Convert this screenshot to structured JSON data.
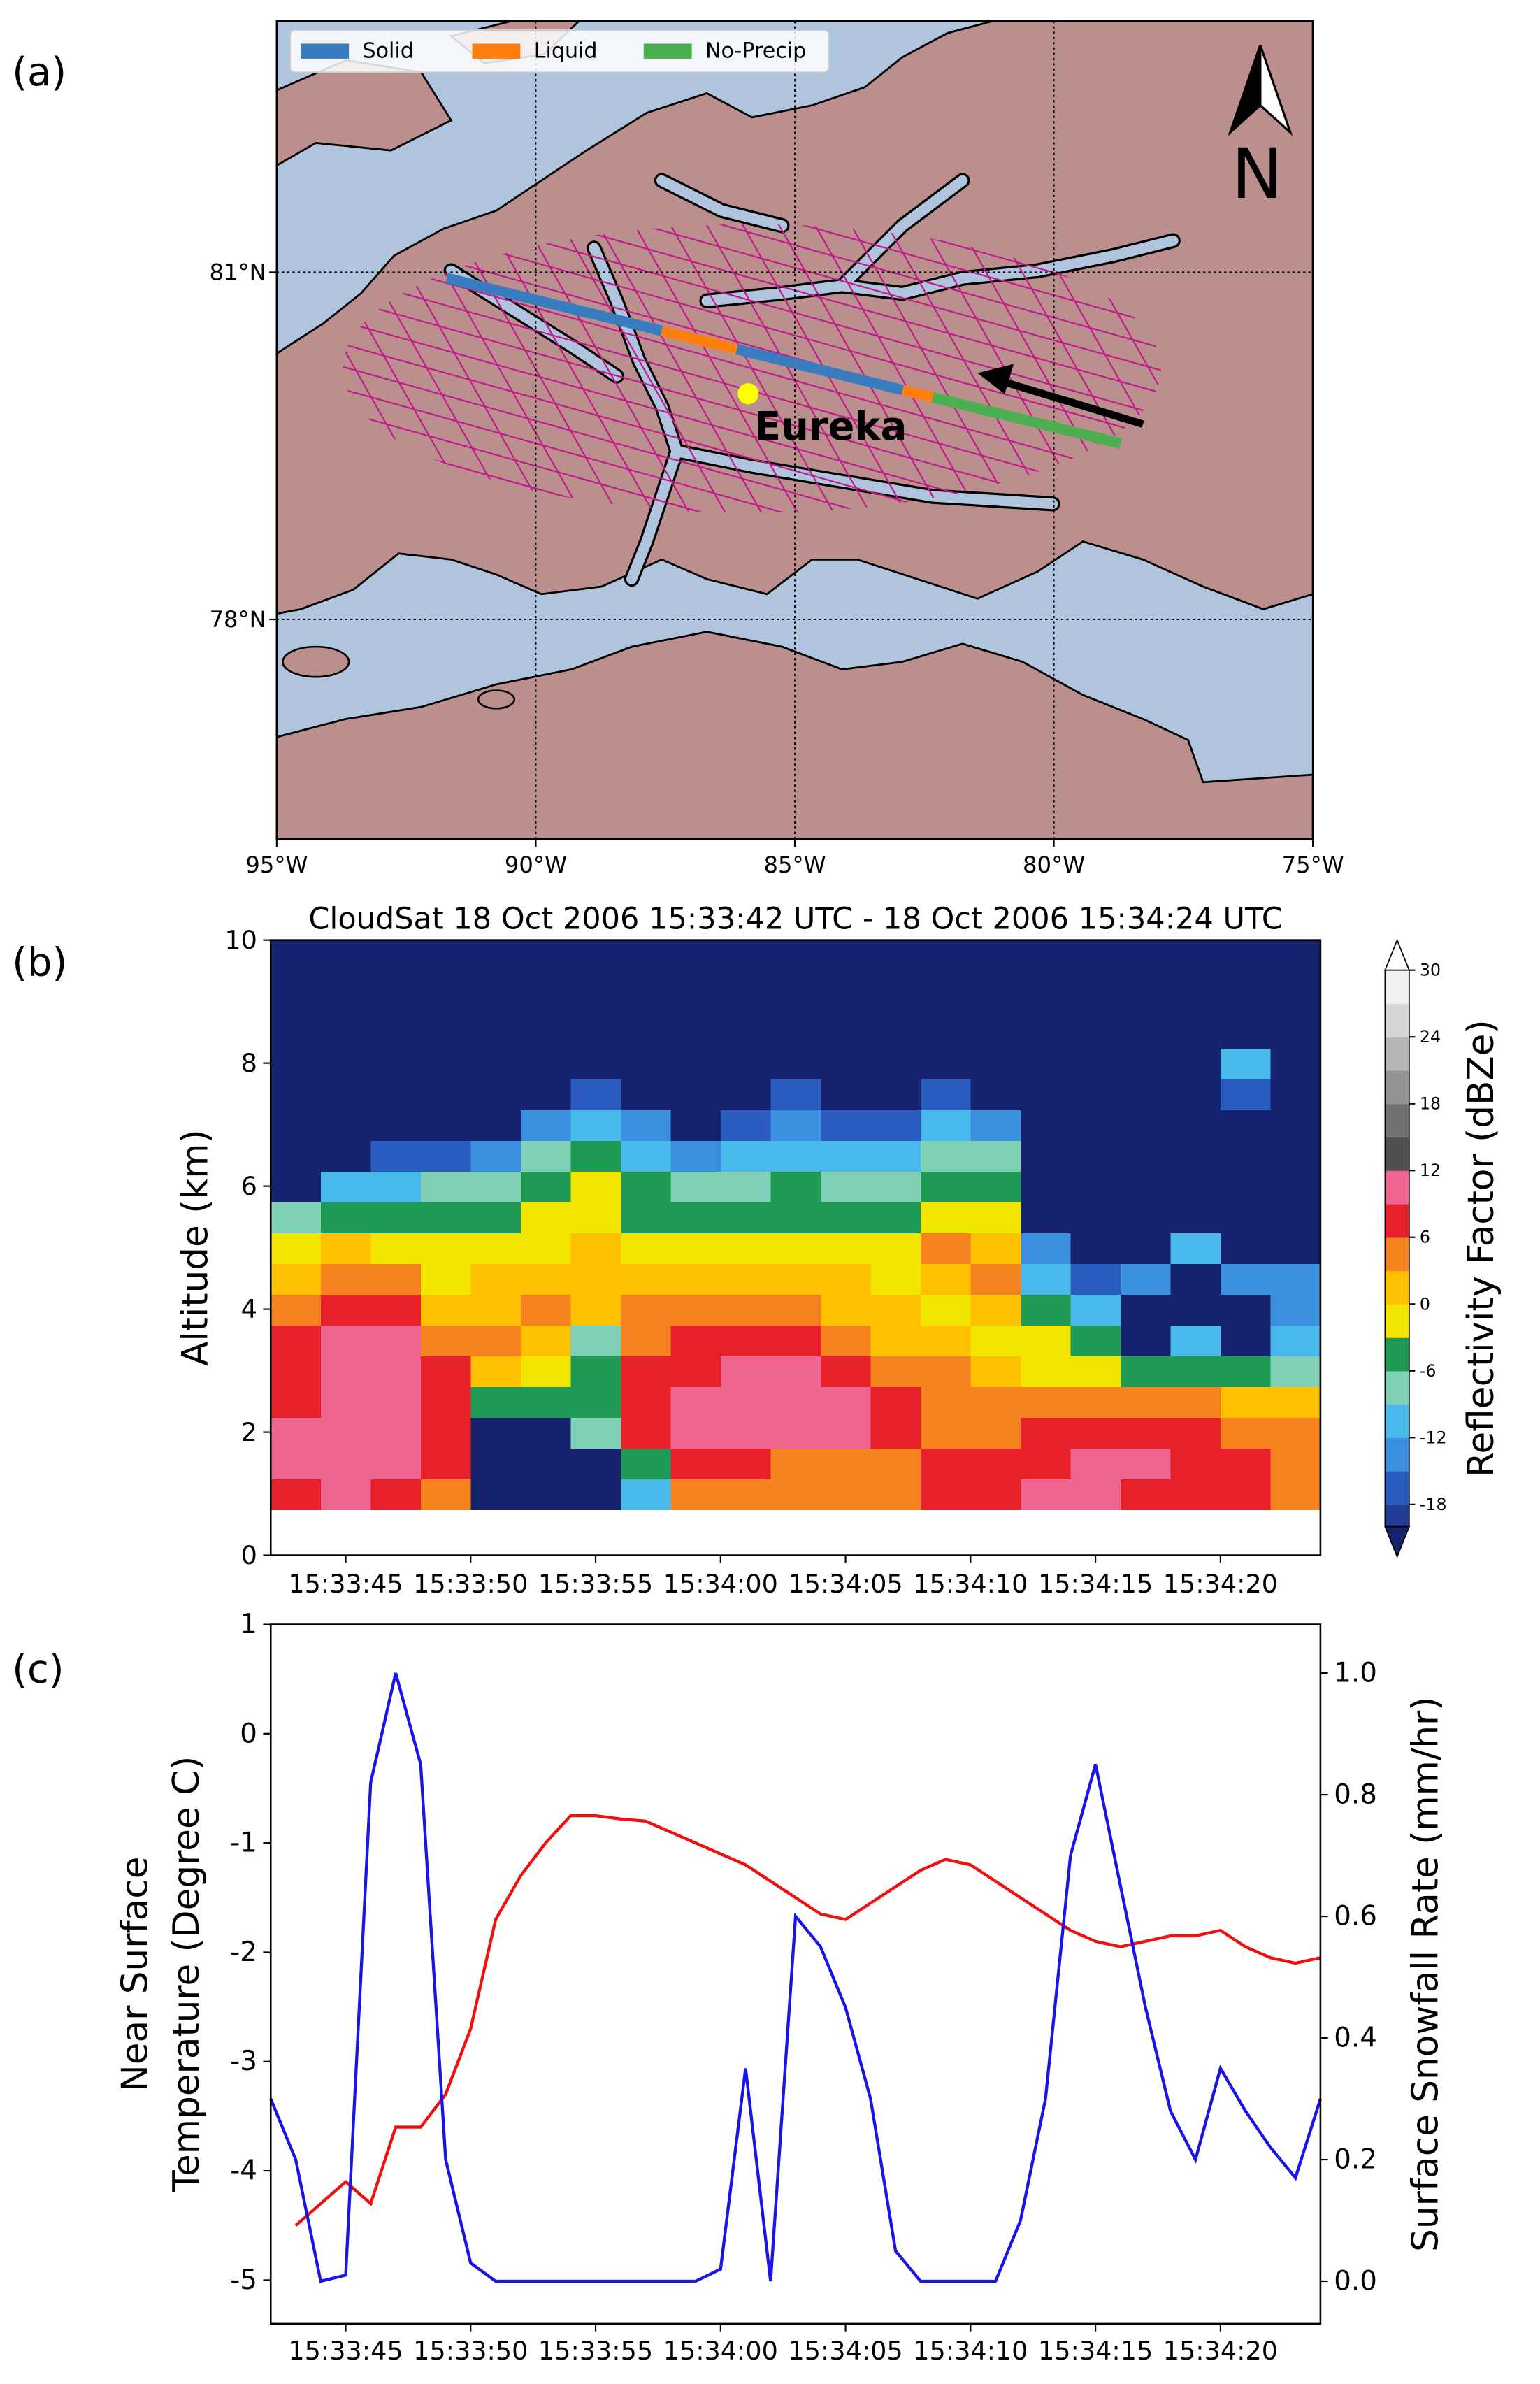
{
  "chart_data": [
    {
      "type": "map",
      "panel_label": "(a)",
      "xlim": [
        -95,
        -75
      ],
      "ylim": [
        76.1,
        83.17
      ],
      "xticks": [
        {
          "value": -95,
          "label": "95°W"
        },
        {
          "value": -90,
          "label": "90°W"
        },
        {
          "value": -85,
          "label": "85°W"
        },
        {
          "value": -80,
          "label": "80°W"
        },
        {
          "value": -75,
          "label": "75°W"
        }
      ],
      "yticks": [
        {
          "value": 78,
          "label": "78°N"
        },
        {
          "value": 81,
          "label": "81°N"
        }
      ],
      "grid": true,
      "track": {
        "lon": [
          -91.72,
          -78.71
        ],
        "lat": [
          80.95,
          79.52
        ]
      },
      "series": [
        {
          "name": "Solid",
          "color": "#3a7dbf",
          "segments": [
            [
              -91.72,
              -87.57
            ],
            [
              -86.12,
              -82.92
            ]
          ]
        },
        {
          "name": "Liquid",
          "color": "#ff7f0e",
          "segments": [
            [
              -87.57,
              -86.12
            ],
            [
              -82.92,
              -82.34
            ]
          ]
        },
        {
          "name": "No-Precip",
          "color": "#4caf50",
          "segments": [
            [
              -82.34,
              -78.71
            ]
          ]
        }
      ],
      "site": {
        "name": "Eureka",
        "lon": -85.9,
        "lat": 79.95,
        "color": "#ffff00"
      },
      "north_label": "N"
    },
    {
      "type": "heatmap",
      "panel_label": "(b)",
      "title": "CloudSat 18 Oct 2006 15:33:42 UTC - 18 Oct 2006 15:34:24 UTC",
      "ylabel": "Altitude (km)",
      "xlim": [
        "15:33:42",
        "15:34:24"
      ],
      "xticks": [
        "15:33:45",
        "15:33:50",
        "15:33:55",
        "15:34:00",
        "15:34:05",
        "15:34:10",
        "15:34:15",
        "15:34:20"
      ],
      "ylim": [
        0,
        10
      ],
      "yticks": [
        0,
        2,
        4,
        6,
        8,
        10
      ],
      "x": [
        "15:33:43",
        "15:33:45",
        "15:33:47",
        "15:33:49",
        "15:33:51",
        "15:33:53",
        "15:33:55",
        "15:33:57",
        "15:33:59",
        "15:34:01",
        "15:34:03",
        "15:34:05",
        "15:34:07",
        "15:34:09",
        "15:34:11",
        "15:34:13",
        "15:34:15",
        "15:34:17",
        "15:34:19",
        "15:34:21",
        "15:34:23"
      ],
      "y": [
        1.0,
        1.5,
        2.0,
        2.5,
        3.0,
        3.5,
        4.0,
        4.5,
        5.0,
        5.5,
        6.0,
        6.5,
        7.0,
        7.5,
        8.0,
        8.5
      ],
      "z": [
        [
          8,
          10,
          10,
          8,
          7,
          7,
          4,
          1,
          -2,
          -8,
          -25,
          -25,
          -25,
          -25,
          -25,
          -25
        ],
        [
          10,
          11,
          11,
          11,
          11,
          10,
          7,
          4,
          1,
          -5,
          -11,
          -25,
          -25,
          -25,
          -25,
          -25
        ],
        [
          7,
          10,
          11,
          11,
          10,
          10,
          7,
          4,
          -1,
          -5,
          -10,
          -16,
          -25,
          -25,
          -25,
          -25
        ],
        [
          4,
          7,
          8,
          7,
          6,
          4,
          2,
          -1,
          -3,
          -5,
          -8,
          -16,
          -25,
          -25,
          -25,
          -25
        ],
        [
          -25,
          -25,
          -25,
          -6,
          1,
          4,
          2,
          0,
          -2,
          -5,
          -8,
          -13,
          -25,
          -25,
          -25,
          -25
        ],
        [
          -25,
          -25,
          -25,
          -5,
          -1,
          2,
          3,
          1,
          -1,
          -2,
          -5,
          -8,
          -14,
          -25,
          -25,
          -25
        ],
        [
          -25,
          -25,
          -8,
          -6,
          -5,
          -7,
          1,
          2,
          1,
          -1,
          -3,
          -6,
          -10,
          -16,
          -25,
          -25
        ],
        [
          -10,
          -6,
          7,
          8,
          7,
          5,
          3,
          1,
          -1,
          -4,
          -6,
          -10,
          -15,
          -25,
          -25,
          -25
        ],
        [
          4,
          8,
          9,
          9,
          8,
          7,
          4,
          1,
          -1,
          -4,
          -9,
          -15,
          -25,
          -25,
          -25,
          -25
        ],
        [
          5,
          8,
          10,
          11,
          10,
          7,
          4,
          1,
          -2,
          -5,
          -8,
          -12,
          -16,
          -25,
          -25,
          -25
        ],
        [
          3,
          5,
          10,
          11,
          10,
          7,
          4,
          1,
          -1,
          -4,
          -6,
          -10,
          -13,
          -16,
          -25,
          -25
        ],
        [
          3,
          4,
          9,
          10,
          8,
          5,
          2,
          0,
          -3,
          -5,
          -9,
          -12,
          -16,
          -25,
          -25,
          -25
        ],
        [
          4,
          4,
          7,
          6,
          4,
          2,
          0,
          -1,
          -1,
          -4,
          -8,
          -12,
          -16,
          -25,
          -25,
          -25
        ],
        [
          6,
          7,
          5,
          4,
          3,
          1,
          -1,
          2,
          3,
          -1,
          -4,
          -8,
          -12,
          -16,
          -25,
          -25
        ],
        [
          7,
          7,
          5,
          3,
          0,
          -1,
          2,
          3,
          0,
          -2,
          -5,
          -9,
          -13,
          -25,
          -25,
          -25
        ],
        [
          9,
          8,
          7,
          4,
          -1,
          -2,
          -6,
          -10,
          -14,
          -25,
          -25,
          -25,
          -25,
          -25,
          -25,
          -25
        ],
        [
          10,
          10,
          7,
          4,
          -1,
          -6,
          -10,
          -16,
          -25,
          -25,
          -25,
          -25,
          -25,
          -25,
          -25,
          -25
        ],
        [
          8,
          10,
          7,
          4,
          -5,
          -25,
          -25,
          -14,
          -25,
          -25,
          -25,
          -25,
          -25,
          -25,
          -25,
          -25
        ],
        [
          7,
          8,
          7,
          3,
          -5,
          -12,
          -25,
          -25,
          -12,
          -25,
          -25,
          -25,
          -25,
          -25,
          -25,
          -25
        ],
        [
          6,
          7,
          5,
          1,
          -5,
          -25,
          -25,
          -13,
          -25,
          -25,
          -25,
          -25,
          -25,
          -18,
          -12,
          -25
        ],
        [
          4,
          4,
          3,
          1,
          -8,
          -12,
          -13,
          -13,
          -25,
          -25,
          -25,
          -25,
          -25,
          -25,
          -25,
          -25
        ]
      ],
      "colorbar": {
        "label": "Reflectivity Factor (dBZe)",
        "levels": [
          -20,
          -18,
          -15,
          -12,
          -9,
          -6,
          -3,
          0,
          3,
          6,
          9,
          12,
          15,
          18,
          21,
          24,
          27,
          30
        ],
        "colors": [
          "#233d96",
          "#2a5cc0",
          "#3a8fdf",
          "#48b9ea",
          "#7fd0b6",
          "#1e9a55",
          "#f2e600",
          "#ffc000",
          "#f5821f",
          "#e8202a",
          "#f06490",
          "#505050",
          "#727272",
          "#949494",
          "#b6b6b6",
          "#d6d6d6",
          "#f0f0f0"
        ],
        "under_color": "#15236e",
        "over_color": "#ffffff",
        "ticks": [
          -18,
          -12,
          -6,
          0,
          6,
          12,
          18,
          24,
          30
        ]
      }
    },
    {
      "type": "line",
      "panel_label": "(c)",
      "xlim": [
        "15:33:42",
        "15:34:24"
      ],
      "xticks": [
        "15:33:45",
        "15:33:50",
        "15:33:55",
        "15:34:00",
        "15:34:05",
        "15:34:10",
        "15:34:15",
        "15:34:20"
      ],
      "ylabel": [
        "Near Surface",
        "Temperature (Degree C)"
      ],
      "y2label": "Surface Snowfall Rate (mm/hr)",
      "ylim": [
        -5.4,
        1
      ],
      "yticks": [
        -5,
        -4,
        -3,
        -2,
        -1,
        0,
        1
      ],
      "y2lim": [
        -0.07,
        1.08
      ],
      "y2ticks": [
        {
          "value": 0,
          "label": "0.0"
        },
        0.2,
        0.4,
        0.6,
        0.8,
        {
          "value": 1,
          "label": "1.0"
        }
      ],
      "x": [
        "15:33:42",
        "15:33:43",
        "15:33:44",
        "15:33:45",
        "15:33:46",
        "15:33:47",
        "15:33:48",
        "15:33:49",
        "15:33:50",
        "15:33:51",
        "15:33:52",
        "15:33:53",
        "15:33:54",
        "15:33:55",
        "15:33:56",
        "15:33:57",
        "15:33:58",
        "15:33:59",
        "15:34:00",
        "15:34:01",
        "15:34:02",
        "15:34:03",
        "15:34:04",
        "15:34:05",
        "15:34:06",
        "15:34:07",
        "15:34:08",
        "15:34:09",
        "15:34:10",
        "15:34:11",
        "15:34:12",
        "15:34:13",
        "15:34:14",
        "15:34:15",
        "15:34:16",
        "15:34:17",
        "15:34:18",
        "15:34:19",
        "15:34:20",
        "15:34:21",
        "15:34:22",
        "15:34:23",
        "15:34:24"
      ],
      "series": [
        {
          "name": "Near Surface Temperature",
          "color": "#ee1111",
          "axis": "y",
          "values": [
            null,
            -4.5,
            -4.3,
            -4.1,
            -4.3,
            -3.6,
            -3.6,
            -3.3,
            -2.7,
            -1.7,
            -1.3,
            -1.0,
            -0.75,
            -0.75,
            -0.78,
            -0.8,
            -0.9,
            -1.0,
            -1.1,
            -1.2,
            -1.35,
            -1.5,
            -1.65,
            -1.7,
            -1.55,
            -1.4,
            -1.25,
            -1.15,
            -1.2,
            -1.35,
            -1.5,
            -1.65,
            -1.8,
            -1.9,
            -1.95,
            -1.9,
            -1.85,
            -1.85,
            -1.8,
            -1.95,
            -2.05,
            -2.1,
            -2.05
          ]
        },
        {
          "name": "Surface Snowfall Rate",
          "color": "#1a14e6",
          "axis": "y2",
          "values": [
            0.3,
            0.2,
            0.0,
            0.01,
            0.82,
            1.0,
            0.85,
            0.2,
            0.03,
            0.0,
            0.0,
            0.0,
            0.0,
            0.0,
            0.0,
            0.0,
            0.0,
            0.0,
            0.02,
            0.35,
            0.0,
            0.6,
            0.55,
            0.45,
            0.3,
            0.05,
            0.0,
            0.0,
            0.0,
            0.0,
            0.1,
            0.3,
            0.7,
            0.85,
            0.65,
            0.45,
            0.28,
            0.2,
            0.35,
            0.28,
            0.22,
            0.17,
            0.3
          ]
        }
      ]
    }
  ]
}
